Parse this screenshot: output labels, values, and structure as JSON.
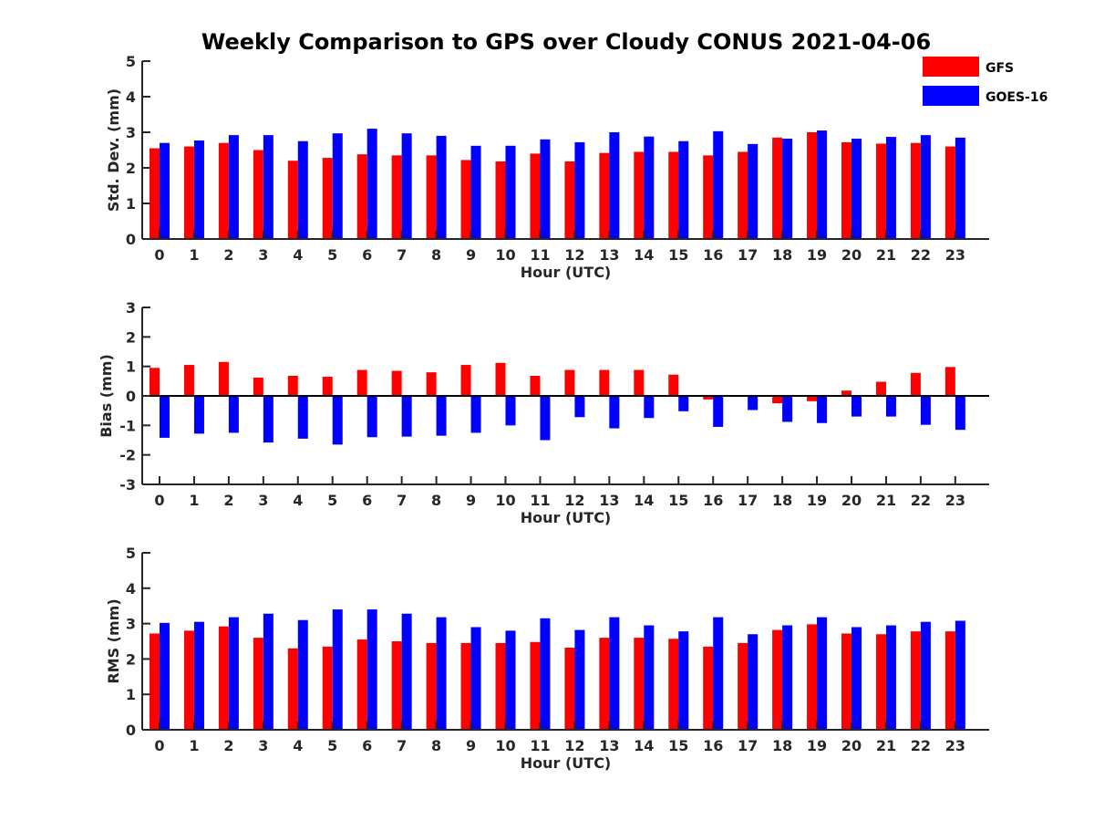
{
  "title": "Weekly Comparison to GPS over Cloudy CONUS 2021-04-06",
  "colors": {
    "GFS": "#ff0000",
    "GOES-16": "#0000ff",
    "axis": "#262626"
  },
  "legend": {
    "placement": "top-right",
    "entries": [
      "GFS",
      "GOES-16"
    ]
  },
  "chart_data": [
    {
      "type": "bar",
      "xlabel": "Hour (UTC)",
      "ylabel": "Std. Dev. (mm)",
      "ylim": [
        0,
        5
      ],
      "yticks": [
        0,
        1,
        2,
        3,
        4,
        5
      ],
      "categories": [
        "0",
        "1",
        "2",
        "3",
        "4",
        "5",
        "6",
        "7",
        "8",
        "9",
        "10",
        "11",
        "12",
        "13",
        "14",
        "15",
        "16",
        "17",
        "18",
        "19",
        "20",
        "21",
        "22",
        "23"
      ],
      "series": [
        {
          "name": "GFS",
          "values": [
            2.55,
            2.6,
            2.7,
            2.5,
            2.2,
            2.28,
            2.38,
            2.35,
            2.35,
            2.22,
            2.18,
            2.4,
            2.18,
            2.42,
            2.45,
            2.45,
            2.35,
            2.45,
            2.85,
            3.0,
            2.72,
            2.68,
            2.7,
            2.6
          ]
        },
        {
          "name": "GOES-16",
          "values": [
            2.7,
            2.77,
            2.92,
            2.92,
            2.75,
            2.97,
            3.1,
            2.97,
            2.9,
            2.62,
            2.62,
            2.8,
            2.72,
            3.0,
            2.88,
            2.75,
            3.03,
            2.67,
            2.82,
            3.05,
            2.82,
            2.87,
            2.92,
            2.85
          ]
        }
      ]
    },
    {
      "type": "bar",
      "xlabel": "Hour (UTC)",
      "ylabel": "Bias (mm)",
      "ylim": [
        -3,
        3
      ],
      "yticks": [
        -3,
        -2,
        -1,
        0,
        1,
        2,
        3
      ],
      "categories": [
        "0",
        "1",
        "2",
        "3",
        "4",
        "5",
        "6",
        "7",
        "8",
        "9",
        "10",
        "11",
        "12",
        "13",
        "14",
        "15",
        "16",
        "17",
        "18",
        "19",
        "20",
        "21",
        "22",
        "23"
      ],
      "series": [
        {
          "name": "GFS",
          "values": [
            0.95,
            1.05,
            1.15,
            0.62,
            0.68,
            0.65,
            0.88,
            0.85,
            0.8,
            1.05,
            1.12,
            0.68,
            0.88,
            0.88,
            0.88,
            0.72,
            -0.12,
            0.0,
            -0.25,
            -0.18,
            0.18,
            0.48,
            0.78,
            0.98
          ]
        },
        {
          "name": "GOES-16",
          "values": [
            -1.42,
            -1.28,
            -1.25,
            -1.58,
            -1.45,
            -1.65,
            -1.4,
            -1.38,
            -1.35,
            -1.25,
            -1.0,
            -1.5,
            -0.72,
            -1.1,
            -0.75,
            -0.52,
            -1.05,
            -0.48,
            -0.88,
            -0.92,
            -0.7,
            -0.7,
            -0.98,
            -1.15
          ]
        }
      ]
    },
    {
      "type": "bar",
      "xlabel": "Hour (UTC)",
      "ylabel": "RMS (mm)",
      "ylim": [
        0,
        5
      ],
      "yticks": [
        0,
        1,
        2,
        3,
        4,
        5
      ],
      "categories": [
        "0",
        "1",
        "2",
        "3",
        "4",
        "5",
        "6",
        "7",
        "8",
        "9",
        "10",
        "11",
        "12",
        "13",
        "14",
        "15",
        "16",
        "17",
        "18",
        "19",
        "20",
        "21",
        "22",
        "23"
      ],
      "series": [
        {
          "name": "GFS",
          "values": [
            2.72,
            2.8,
            2.92,
            2.6,
            2.3,
            2.35,
            2.55,
            2.5,
            2.45,
            2.45,
            2.45,
            2.48,
            2.32,
            2.6,
            2.6,
            2.57,
            2.35,
            2.45,
            2.82,
            2.98,
            2.72,
            2.7,
            2.78,
            2.78
          ]
        },
        {
          "name": "GOES-16",
          "values": [
            3.02,
            3.05,
            3.18,
            3.28,
            3.1,
            3.4,
            3.4,
            3.28,
            3.18,
            2.9,
            2.8,
            3.15,
            2.82,
            3.18,
            2.95,
            2.78,
            3.18,
            2.7,
            2.95,
            3.18,
            2.9,
            2.95,
            3.05,
            3.08
          ]
        }
      ]
    }
  ]
}
